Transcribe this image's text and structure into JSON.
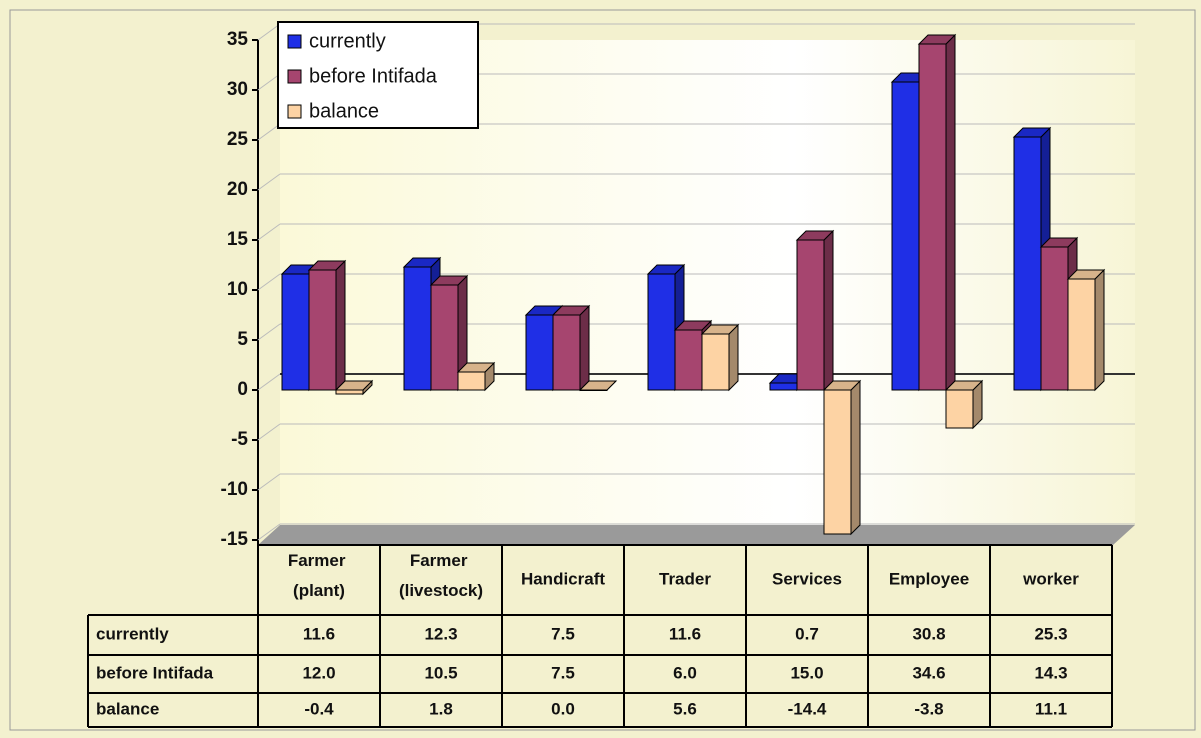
{
  "chart_data": {
    "type": "bar",
    "categories": [
      "Farmer (plant)",
      "Farmer (livestock)",
      "Handicraft",
      "Trader",
      "Services",
      "Employee",
      "worker"
    ],
    "series": [
      {
        "name": "currently",
        "color": "#1f2fe6",
        "values": [
          11.6,
          12.3,
          7.5,
          11.6,
          0.7,
          30.8,
          25.3
        ],
        "value_labels": [
          "11.6",
          "12.3",
          "7.5",
          "11.6",
          "0.7",
          "30.8",
          "25.3"
        ]
      },
      {
        "name": "before Intifada",
        "color": "#a6456f",
        "values": [
          12.0,
          10.5,
          7.5,
          6.0,
          15.0,
          34.6,
          14.3
        ],
        "value_labels": [
          "12.0",
          "10.5",
          "7.5",
          "6.0",
          "15.0",
          "34.6",
          "14.3"
        ]
      },
      {
        "name": "balance",
        "color": "#fdd3a4",
        "values": [
          -0.4,
          1.8,
          0.0,
          5.6,
          -14.4,
          -3.8,
          11.1
        ],
        "value_labels": [
          "-0.4",
          "1.8",
          "0.0",
          "5.6",
          "-14.4",
          "-3.8",
          "11.1"
        ]
      }
    ],
    "ylim": [
      -15,
      35
    ],
    "yticks": [
      -15,
      -10,
      -5,
      0,
      5,
      10,
      15,
      20,
      25,
      30,
      35
    ],
    "grid": true,
    "legend": "top-left"
  }
}
